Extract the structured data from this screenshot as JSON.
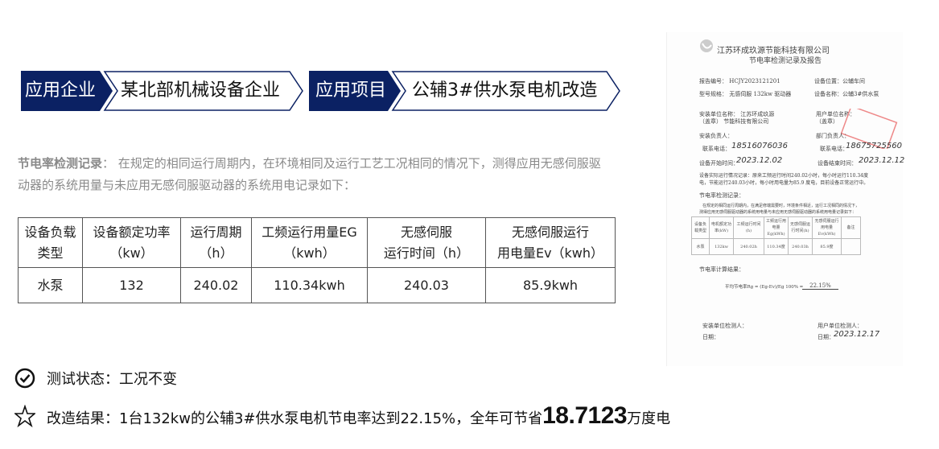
{
  "banner": {
    "company_label": "应用企业",
    "company_value": "某北部机械设备企业",
    "project_label": "应用项目",
    "project_value": "公辅3#供水泵电机改造",
    "dark_color": "#0b2163"
  },
  "intro": {
    "heading": "节电率检测记录",
    "text": "： 在规定的相同运行周期内，在环境相同及运行工艺工况相同的情况下，测得应用无感伺服驱动器的系统用量与未应用无感伺服驱动器的系统用电记录如下："
  },
  "table": {
    "headers": [
      [
        "设备负载",
        "类型"
      ],
      [
        "设备额定功率",
        "（kw）"
      ],
      [
        "运行周期",
        "（h）"
      ],
      [
        "工频运行用量EG",
        "（kwh）"
      ],
      [
        "无感伺服",
        "运行时间（h）"
      ],
      [
        "无感伺服运行",
        "用电量Ev（kwh）"
      ]
    ],
    "row": [
      "水泵",
      "132",
      "240.02",
      "110.34kwh",
      "240.03",
      "85.9kwh"
    ]
  },
  "status": {
    "icon": "check-circle-icon",
    "text": "测试状态：工况不变"
  },
  "result": {
    "icon": "star-outline-icon",
    "prefix": "改造结果：1台132kw的公辅3#供水泵电机节电率达到22.15%，全年可节省",
    "number": "18.7123",
    "suffix": "万度电"
  },
  "document": {
    "company": "江苏环成玖源节能科技有限公司",
    "title": "节电率检测记录及报告",
    "report_no": "报告编号： HCJY2023121201",
    "location": "设备位置：公辅车间",
    "model": "型号规格： 无感伺服 132kw 驱动器",
    "device_name": "设备名称：公辅3#供水泵",
    "installer": "安装单位名称：  江苏环成玖源",
    "installer2": "（盖章）        节能科技有限公司",
    "user_unit": "用户单位名称：",
    "user_unit2": "（盖章）",
    "install_head": "安装负责人：",
    "dept_head": "部门负责人：",
    "phone1": "联系电话：",
    "phone1_val": "18516076036",
    "phone2": "联系电话：",
    "phone2_val": "18675725560",
    "start": "设备开始时间：",
    "start_val": "2023.12.02",
    "end": "设备结束时间：",
    "end_val": "2023.12.12",
    "run_record1": "设备实际运行情况记录：原来工频运行时间240.02小时，每小时运行110.34度",
    "run_record2": "电，节能运行240.03小时，每小时用电量为85.9 度电，目前设备正常运行中。",
    "check_heading": "节电率检测记录：",
    "check_text1": "在规定的相同运行周期内，在满足修端需要时，环境条件相近，运行工况相同的情况下，",
    "check_text2": "测得应用无感伺服驱动器的系统用电量与未应用无感伺服驱动器的系统用电量记录如下：",
    "table_headers": [
      "设备负载类型",
      "电机额定功率(kW)",
      "工频运行时间(h)",
      "工频运行用电量Eg(kWh)",
      "无感伺服运行时间(h)",
      "无感伺服运行用电量Ev(kWh)",
      "备注"
    ],
    "table_row": [
      "水泵",
      "132kw",
      "240.02h",
      "110.34度",
      "240.03h",
      "85.9度",
      ""
    ],
    "calc_heading": "节电率计算结果：",
    "formula": "平均节电率Rg = (Eg-Ev)/Eg 100% =",
    "formula_result": "22.15%",
    "installer_check": "安装单位检测人：",
    "user_check": "用户单位检测人：",
    "date1": "日期：",
    "date2": "日期：",
    "date2_val": "2023.12.17"
  }
}
